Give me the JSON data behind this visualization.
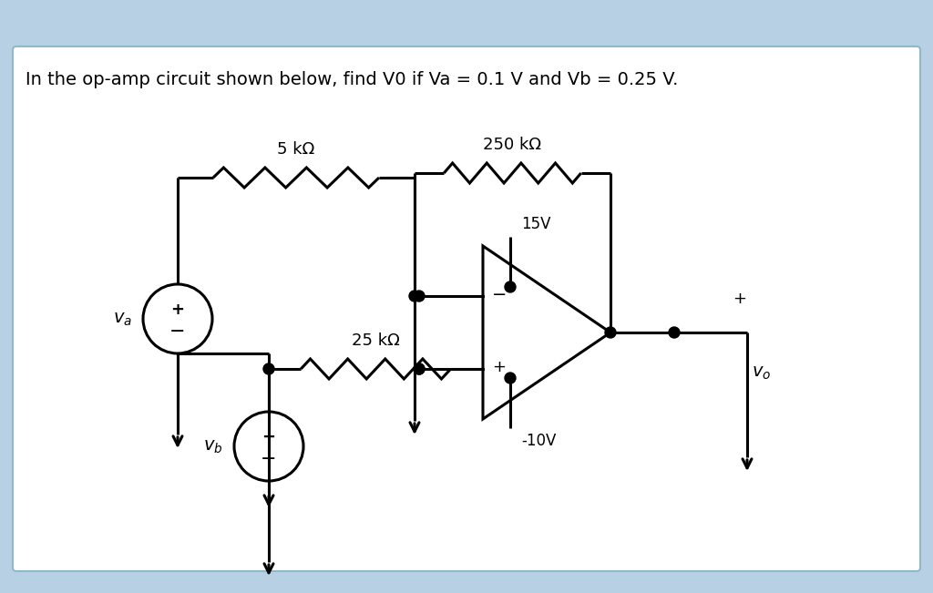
{
  "title": "In the op-amp circuit shown below, find V0 if Va = 0.1 V and Vb = 0.25 V.",
  "bg_outer": "#b8d0e3",
  "bg_inner": "#ffffff",
  "line_color": "#000000",
  "label_5k": "5 kΩ",
  "label_25k": "25 kΩ",
  "label_250k": "250 kΩ",
  "label_15v": "15V",
  "label_m10v": "-10V",
  "label_va": "$v_a$",
  "label_vb": "$v_b$",
  "label_vo": "$v_o$"
}
